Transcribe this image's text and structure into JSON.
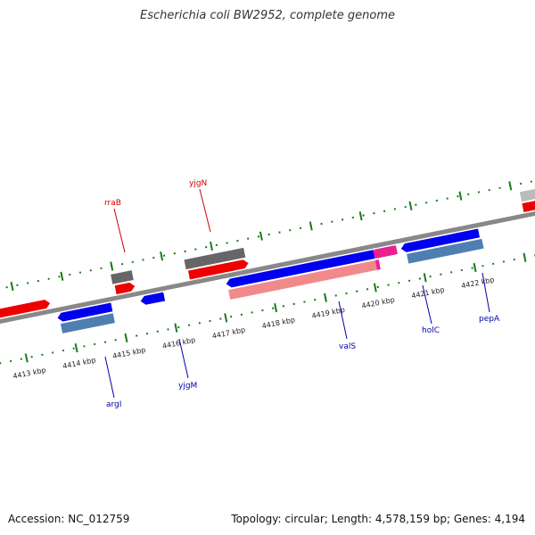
{
  "title": "Escherichia coli BW2952, complete genome",
  "footer": {
    "accession": "Accession: NC_012759",
    "summary": "Topology: circular; Length: 4,578,159 bp; Genes: 4,194"
  },
  "ticks": [
    "4413 kbp",
    "4414 kbp",
    "4415 kbp",
    "4416 kbp",
    "4417 kbp",
    "4418 kbp",
    "4419 kbp",
    "4420 kbp",
    "4421 kbp",
    "4422 kbp"
  ],
  "genes_top": [
    {
      "name": "rraB",
      "color": "#cc0000"
    },
    {
      "name": "yjgN",
      "color": "#cc0000"
    }
  ],
  "genes_bottom": [
    {
      "name": "argI",
      "color": "#0000aa"
    },
    {
      "name": "yjgM",
      "color": "#0000aa"
    },
    {
      "name": "valS",
      "color": "#0000aa"
    },
    {
      "name": "holC",
      "color": "#0000aa"
    },
    {
      "name": "pepA",
      "color": "#0000aa"
    }
  ],
  "colors": {
    "forward_cds": "#ee0000",
    "forward_feature": "#666666",
    "reverse_cds": "#0000ee",
    "reverse_feature": "#4f7fb0",
    "reverse_rna": "#f08a8a",
    "overlap": "#ee2090",
    "backbone": "#888888",
    "tick_dots": "#1a7a1a"
  }
}
